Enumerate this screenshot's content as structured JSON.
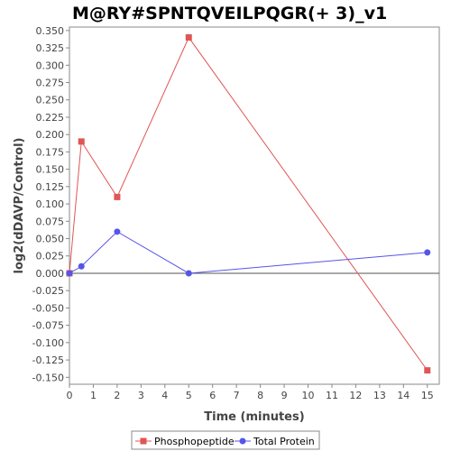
{
  "chart_data": {
    "type": "line",
    "title": "M@RY#SPNTQVEILPQGR(+ 3)_v1",
    "xlabel": "Time (minutes)",
    "ylabel": "log2(dDAVP/Control)",
    "xlim": [
      0,
      15.5
    ],
    "ylim": [
      -0.16,
      0.355
    ],
    "x_ticks": [
      0,
      1,
      2,
      3,
      4,
      5,
      6,
      7,
      8,
      9,
      10,
      11,
      12,
      13,
      14,
      15
    ],
    "y_ticks": [
      -0.15,
      -0.125,
      -0.1,
      -0.075,
      -0.05,
      -0.025,
      0.0,
      0.025,
      0.05,
      0.075,
      0.1,
      0.125,
      0.15,
      0.175,
      0.2,
      0.225,
      0.25,
      0.275,
      0.3,
      0.325,
      0.35
    ],
    "y_tick_labels": [
      "-0.150",
      "-0.125",
      "-0.100",
      "-0.075",
      "-0.050",
      "-0.025",
      "0.000",
      "0.025",
      "0.050",
      "0.075",
      "0.100",
      "0.125",
      "0.150",
      "0.175",
      "0.200",
      "0.225",
      "0.250",
      "0.275",
      "0.300",
      "0.325",
      "0.350"
    ],
    "grid": false,
    "legend_position": "bottom",
    "series": [
      {
        "name": "Phosphopeptide",
        "color": "#e05555",
        "marker": "square",
        "x": [
          0,
          0.5,
          2,
          5,
          15
        ],
        "y": [
          0.0,
          0.19,
          0.11,
          0.34,
          -0.14
        ]
      },
      {
        "name": "Total Protein",
        "color": "#5555e8",
        "marker": "circle",
        "x": [
          0,
          0.5,
          2,
          5,
          15
        ],
        "y": [
          0.0,
          0.01,
          0.06,
          0.0,
          0.03
        ]
      }
    ]
  }
}
